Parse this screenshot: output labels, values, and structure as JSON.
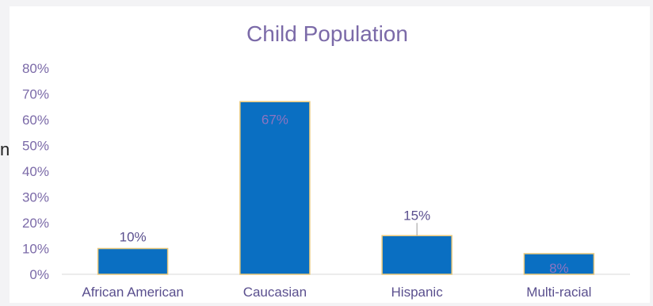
{
  "edge_text": "n",
  "chart_data": {
    "type": "bar",
    "title": "Child Population",
    "categories": [
      "African American",
      "Caucasian",
      "Hispanic",
      "Multi-racial"
    ],
    "values": [
      10,
      67,
      15,
      8
    ],
    "value_labels": [
      "10%",
      "67%",
      "15%",
      "8%"
    ],
    "y_ticks": [
      "0%",
      "10%",
      "20%",
      "30%",
      "40%",
      "50%",
      "60%",
      "70%",
      "80%"
    ],
    "ylim": [
      0,
      80
    ],
    "grid": false,
    "legend": "none",
    "colors": {
      "bar": "#0a6fc2",
      "bar_outline": "#e8c77a",
      "title": "#7b6aa8",
      "tick": "#7b6aa8",
      "category": "#5a4f8e",
      "label_outside": "#5a4f8e",
      "label_inside": "#8c74c0"
    }
  }
}
